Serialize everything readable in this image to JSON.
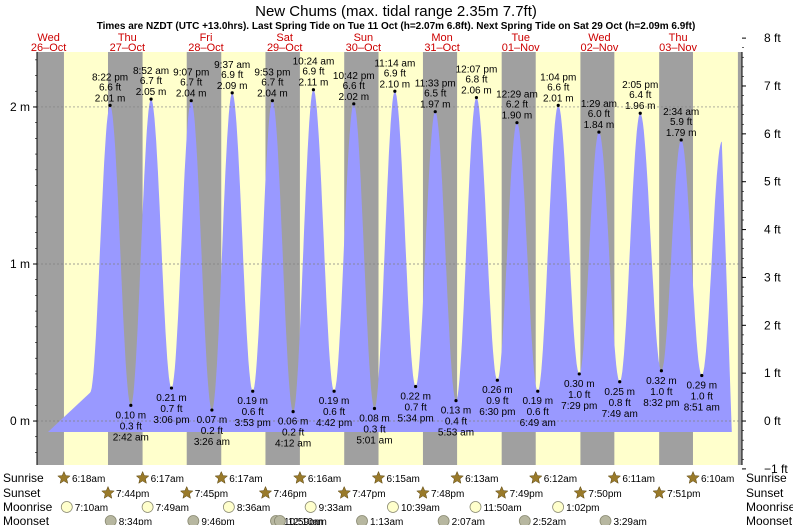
{
  "chart_data": {
    "type": "area",
    "title": "New Chums (max. tidal range 2.35m 7.7ft)",
    "subtitle": "Times are NZDT (UTC +13.0hrs). Last Spring Tide on Tue 11 Oct (h=2.07m 6.8ft). Next Spring Tide on Sat 29 Oct (h=2.09m 6.9ft)",
    "y_left": {
      "unit": "m",
      "range": [
        -0.28,
        2.35
      ],
      "ticks": [
        "0 m",
        "1 m",
        "2 m"
      ],
      "tick_values": [
        0,
        1,
        2
      ]
    },
    "y_right": {
      "unit": "ft",
      "range": [
        -1,
        8
      ],
      "ticks": [
        "−1 ft",
        "0 ft",
        "1 ft",
        "2 ft",
        "3 ft",
        "4 ft",
        "5 ft",
        "6 ft",
        "7 ft",
        "8 ft"
      ],
      "tick_values": [
        -1,
        0,
        1,
        2,
        3,
        4,
        5,
        6,
        7,
        8
      ]
    },
    "days": [
      {
        "dow": "Wed",
        "date": "26–Oct",
        "color": "#cc0000",
        "sunrise": "6:18am",
        "sunset": "7:44pm",
        "moonrise": "7:10am",
        "moonset": "8:34pm"
      },
      {
        "dow": "Thu",
        "date": "27–Oct",
        "color": "#cc0000",
        "sunrise": "6:17am",
        "sunset": "7:45pm",
        "moonrise": "7:49am",
        "moonset": "9:46pm"
      },
      {
        "dow": "Fri",
        "date": "28–Oct",
        "color": "#cc0000",
        "sunrise": "6:17am",
        "sunset": "7:46pm",
        "moonrise": "8:36am",
        "moonset": "10:59pm"
      },
      {
        "dow": "Sat",
        "date": "29–Oct",
        "color": "#cc0000",
        "sunrise": "6:16am",
        "sunset": "7:47pm",
        "moonrise": "9:33am",
        "moonset": "12:10am"
      },
      {
        "dow": "Sun",
        "date": "30–Oct",
        "color": "#cc0000",
        "sunrise": "6:15am",
        "sunset": "7:48pm",
        "moonrise": "10:39am",
        "moonset": "1:13am"
      },
      {
        "dow": "Mon",
        "date": "31–Oct",
        "color": "#cc0000",
        "sunrise": "6:13am",
        "sunset": "7:49pm",
        "moonrise": "11:50am",
        "moonset": "2:07am"
      },
      {
        "dow": "Tue",
        "date": "01–Nov",
        "color": "#cc0000",
        "sunrise": "6:12am",
        "sunset": "7:50pm",
        "moonrise": "1:02pm",
        "moonset": "2:52am"
      },
      {
        "dow": "Wed",
        "date": "02–Nov",
        "color": "#cc0000",
        "sunrise": "6:11am",
        "sunset": "7:51pm",
        "moonrise": "",
        "moonset": "3:29am"
      },
      {
        "dow": "Thu",
        "date": "03–Nov",
        "color": "#cc0000",
        "sunrise": "6:10am",
        "sunset": "",
        "moonrise": "",
        "moonset": ""
      }
    ],
    "tides": [
      {
        "type": "high",
        "time": "8:22 pm",
        "ft": "6.6 ft",
        "m": "2.01 m",
        "day": 0,
        "hour": 20.37,
        "h": 2.01
      },
      {
        "type": "low",
        "time": "2:42 am",
        "ft": "0.3 ft",
        "m": "0.10 m",
        "day": 1,
        "hour": 2.7,
        "h": 0.1
      },
      {
        "type": "high",
        "time": "8:52 am",
        "ft": "6.7 ft",
        "m": "2.05 m",
        "day": 1,
        "hour": 8.87,
        "h": 2.05
      },
      {
        "type": "low",
        "time": "3:06 pm",
        "ft": "0.7 ft",
        "m": "0.21 m",
        "day": 1,
        "hour": 15.1,
        "h": 0.21
      },
      {
        "type": "high",
        "time": "9:07 pm",
        "ft": "6.7 ft",
        "m": "2.04 m",
        "day": 1,
        "hour": 21.12,
        "h": 2.04
      },
      {
        "type": "low",
        "time": "3:26 am",
        "ft": "0.2 ft",
        "m": "0.07 m",
        "day": 2,
        "hour": 3.43,
        "h": 0.07
      },
      {
        "type": "high",
        "time": "9:37 am",
        "ft": "6.9 ft",
        "m": "2.09 m",
        "day": 2,
        "hour": 9.62,
        "h": 2.09
      },
      {
        "type": "low",
        "time": "3:53 pm",
        "ft": "0.6 ft",
        "m": "0.19 m",
        "day": 2,
        "hour": 15.88,
        "h": 0.19
      },
      {
        "type": "high",
        "time": "9:53 pm",
        "ft": "6.7 ft",
        "m": "2.04 m",
        "day": 2,
        "hour": 21.88,
        "h": 2.04
      },
      {
        "type": "low",
        "time": "4:12 am",
        "ft": "0.2 ft",
        "m": "0.06 m",
        "day": 3,
        "hour": 4.2,
        "h": 0.06
      },
      {
        "type": "high",
        "time": "10:24 am",
        "ft": "6.9 ft",
        "m": "2.11 m",
        "day": 3,
        "hour": 10.4,
        "h": 2.11
      },
      {
        "type": "low",
        "time": "4:42 pm",
        "ft": "0.6 ft",
        "m": "0.19 m",
        "day": 3,
        "hour": 16.7,
        "h": 0.19
      },
      {
        "type": "high",
        "time": "10:42 pm",
        "ft": "6.6 ft",
        "m": "2.02 m",
        "day": 3,
        "hour": 22.7,
        "h": 2.02
      },
      {
        "type": "low",
        "time": "5:01 am",
        "ft": "0.3 ft",
        "m": "0.08 m",
        "day": 4,
        "hour": 5.02,
        "h": 0.08
      },
      {
        "type": "high",
        "time": "11:14 am",
        "ft": "6.9 ft",
        "m": "2.10 m",
        "day": 4,
        "hour": 11.23,
        "h": 2.1
      },
      {
        "type": "low",
        "time": "5:34 pm",
        "ft": "0.7 ft",
        "m": "0.22 m",
        "day": 4,
        "hour": 17.57,
        "h": 0.22
      },
      {
        "type": "high",
        "time": "11:33 pm",
        "ft": "6.5 ft",
        "m": "1.97 m",
        "day": 4,
        "hour": 23.55,
        "h": 1.97
      },
      {
        "type": "low",
        "time": "5:53 am",
        "ft": "0.4 ft",
        "m": "0.13 m",
        "day": 5,
        "hour": 5.88,
        "h": 0.13
      },
      {
        "type": "high",
        "time": "12:07 pm",
        "ft": "6.8 ft",
        "m": "2.06 m",
        "day": 5,
        "hour": 12.12,
        "h": 2.06
      },
      {
        "type": "low",
        "time": "6:30 pm",
        "ft": "0.9 ft",
        "m": "0.26 m",
        "day": 5,
        "hour": 18.5,
        "h": 0.26
      },
      {
        "type": "high",
        "time": "12:29 am",
        "ft": "6.2 ft",
        "m": "1.90 m",
        "day": 6,
        "hour": 0.48,
        "h": 1.9
      },
      {
        "type": "low",
        "time": "6:49 am",
        "ft": "0.6 ft",
        "m": "0.19 m",
        "day": 6,
        "hour": 6.82,
        "h": 0.19
      },
      {
        "type": "high",
        "time": "1:04 pm",
        "ft": "6.6 ft",
        "m": "2.01 m",
        "day": 6,
        "hour": 13.07,
        "h": 2.01
      },
      {
        "type": "low",
        "time": "7:29 pm",
        "ft": "1.0 ft",
        "m": "0.30 m",
        "day": 6,
        "hour": 19.48,
        "h": 0.3
      },
      {
        "type": "high",
        "time": "1:29 am",
        "ft": "6.0 ft",
        "m": "1.84 m",
        "day": 7,
        "hour": 1.48,
        "h": 1.84
      },
      {
        "type": "low",
        "time": "7:49 am",
        "ft": "0.8 ft",
        "m": "0.25 m",
        "day": 7,
        "hour": 7.82,
        "h": 0.25
      },
      {
        "type": "high",
        "time": "2:05 pm",
        "ft": "6.4 ft",
        "m": "1.96 m",
        "day": 7,
        "hour": 14.08,
        "h": 1.96
      },
      {
        "type": "low",
        "time": "8:32 pm",
        "ft": "1.0 ft",
        "m": "0.32 m",
        "day": 7,
        "hour": 20.53,
        "h": 0.32
      },
      {
        "type": "high",
        "time": "2:34 am",
        "ft": "5.9 ft",
        "m": "1.79 m",
        "day": 8,
        "hour": 2.57,
        "h": 1.79
      },
      {
        "type": "low",
        "time": "8:51 am",
        "ft": "1.0 ft",
        "m": "0.29 m",
        "day": 8,
        "hour": 8.85,
        "h": 0.29
      }
    ],
    "row_labels": {
      "sunrise": "Sunrise",
      "sunset": "Sunset",
      "moonrise": "Moonrise",
      "moonset": "Moonset"
    },
    "colors": {
      "day": "#ffffcc",
      "night": "#a0a0a0",
      "water": "#9999ff",
      "grid": "#808080",
      "sun": "#997a2a",
      "moonrise": "#ffffcc",
      "moonset": "#b7b7a0"
    }
  }
}
